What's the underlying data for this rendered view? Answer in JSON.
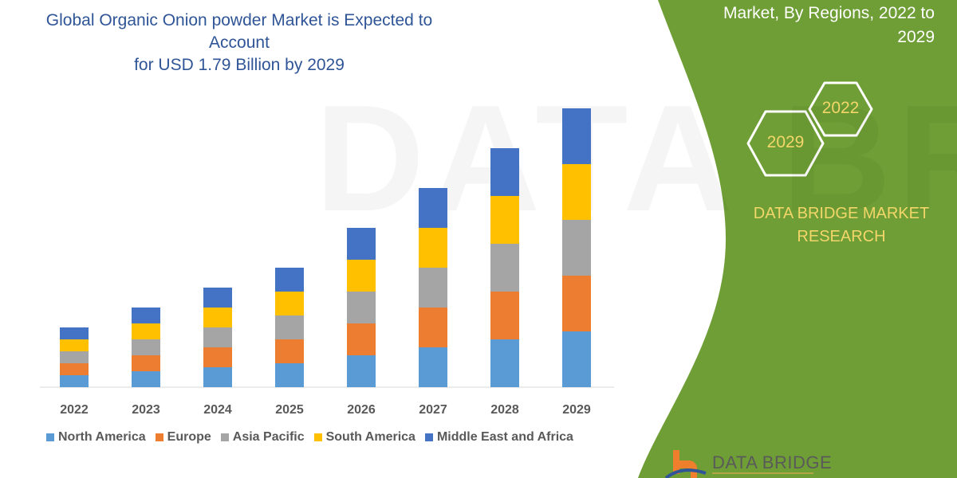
{
  "header": {
    "title_lines": [
      "Global Organic Onion powder Market is Expected to Account",
      "for USD 1.79 Billion by 2029"
    ]
  },
  "side_panel": {
    "title_lines": [
      "Market, By Regions, 2022 to",
      "2029"
    ],
    "hex_start": "2022",
    "hex_end": "2029",
    "brand_lines": [
      "DATA BRIDGE MARKET",
      "RESEARCH"
    ],
    "logo_text": "DATA BRIDGE",
    "panel_color": "#6E9E35",
    "accent_text_color": "#F3D66A"
  },
  "chart_data": {
    "type": "bar",
    "stacked": true,
    "categories": [
      "2022",
      "2023",
      "2024",
      "2025",
      "2026",
      "2027",
      "2028",
      "2029"
    ],
    "series": [
      {
        "name": "North America",
        "color": "#5B9BD5",
        "values": [
          15,
          20,
          25,
          30,
          40,
          50,
          60,
          70
        ]
      },
      {
        "name": "Europe",
        "color": "#ED7D31",
        "values": [
          15,
          20,
          25,
          30,
          40,
          50,
          60,
          70
        ]
      },
      {
        "name": "Asia Pacific",
        "color": "#A5A5A5",
        "values": [
          15,
          20,
          25,
          30,
          40,
          50,
          60,
          70
        ]
      },
      {
        "name": "South America",
        "color": "#FFC000",
        "values": [
          15,
          20,
          25,
          30,
          40,
          50,
          60,
          70
        ]
      },
      {
        "name": "Middle East and Africa",
        "color": "#4472C4",
        "values": [
          15,
          20,
          25,
          30,
          40,
          50,
          60,
          70
        ]
      }
    ],
    "title": "",
    "xlabel": "",
    "ylabel": "",
    "y_axis_shown": false,
    "grid": false,
    "legend_position": "bottom"
  }
}
